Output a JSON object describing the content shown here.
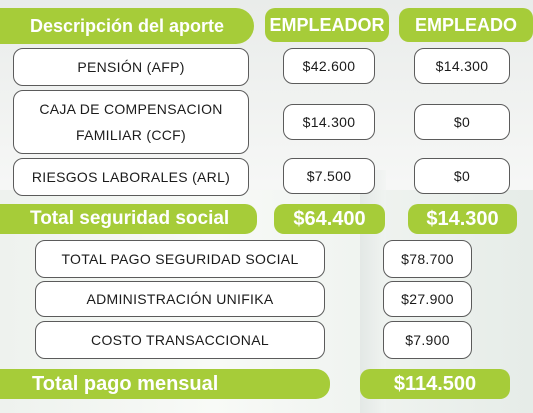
{
  "header": {
    "concept": "Descripción del aporte",
    "employer": "EMPLEADOR",
    "employee": "EMPLEADO"
  },
  "rows": [
    {
      "label_lines": [
        "PENSIÓN (AFP)"
      ],
      "employer": "$42.600",
      "employee": "$14.300"
    },
    {
      "label_lines": [
        "CAJA DE COMPENSACION",
        "FAMILIAR (CCF)"
      ],
      "employer": "$14.300",
      "employee": "$0"
    },
    {
      "label_lines": [
        "RIESGOS LABORALES (ARL)"
      ],
      "employer": "$7.500",
      "employee": "$0"
    }
  ],
  "subtotal": {
    "label": "Total seguridad social",
    "employer": "$64.400",
    "employee": "$14.300"
  },
  "summary": [
    {
      "label": "TOTAL PAGO SEGURIDAD SOCIAL",
      "value": "$78.700"
    },
    {
      "label": "ADMINISTRACIÓN UNIFIKA",
      "value": "$27.900"
    },
    {
      "label": "COSTO TRANSACCIONAL",
      "value": "$7.900"
    }
  ],
  "total": {
    "label": "Total pago mensual",
    "value": "$114.500"
  },
  "colors": {
    "accent_green": "#a6cc39",
    "border": "#5b5b5b"
  }
}
